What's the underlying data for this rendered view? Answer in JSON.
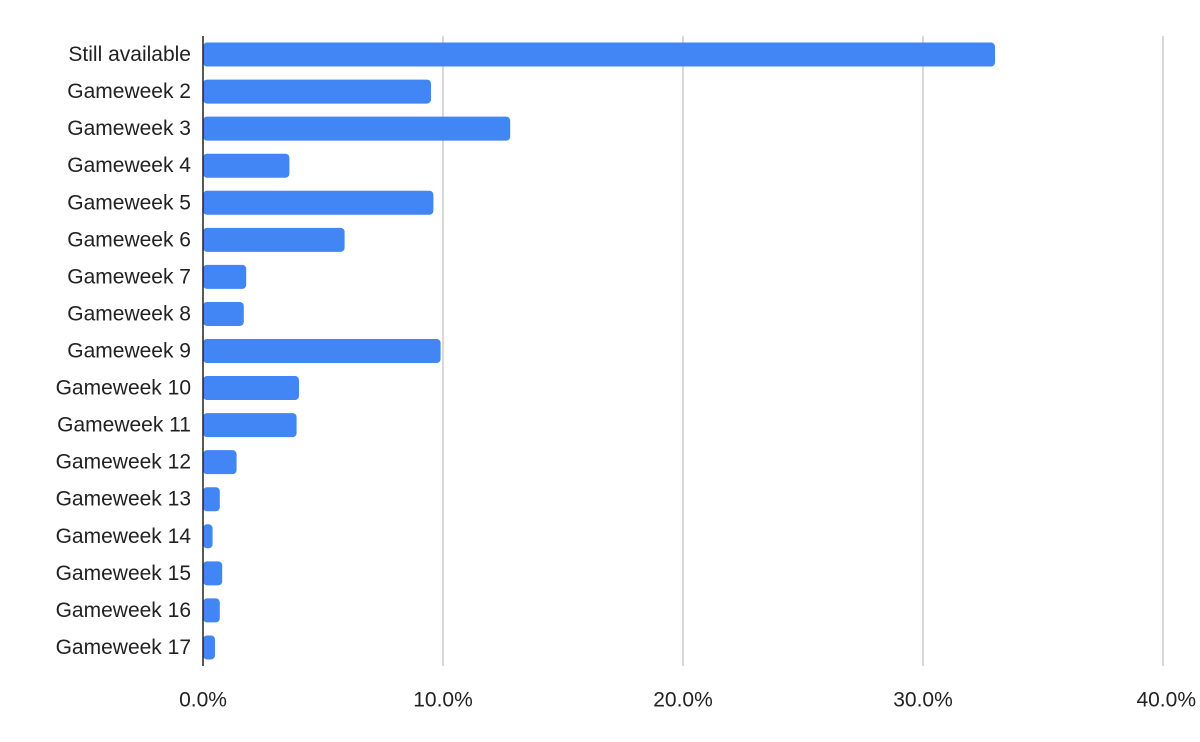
{
  "chart_data": {
    "type": "bar",
    "orientation": "horizontal",
    "title": "",
    "xlabel": "",
    "ylabel": "",
    "categories": [
      "Still available",
      "Gameweek 2",
      "Gameweek 3",
      "Gameweek 4",
      "Gameweek 5",
      "Gameweek 6",
      "Gameweek 7",
      "Gameweek 8",
      "Gameweek 9",
      "Gameweek 10",
      "Gameweek 11",
      "Gameweek 12",
      "Gameweek 13",
      "Gameweek 14",
      "Gameweek 15",
      "Gameweek 16",
      "Gameweek 17"
    ],
    "values": [
      33.0,
      9.5,
      12.8,
      3.6,
      9.6,
      5.9,
      1.8,
      1.7,
      9.9,
      4.0,
      3.9,
      1.4,
      0.7,
      0.4,
      0.8,
      0.7,
      0.5
    ],
    "xlim": [
      0,
      40
    ],
    "xticks": [
      0,
      10,
      20,
      30,
      40
    ],
    "xtick_labels": [
      "0.0%",
      "10.0%",
      "20.0%",
      "30.0%",
      "40.0%"
    ],
    "grid": true,
    "legend": "none",
    "bar_color": "#4285f4",
    "grid_color": "#cccccc",
    "axis_color": "#222222"
  }
}
